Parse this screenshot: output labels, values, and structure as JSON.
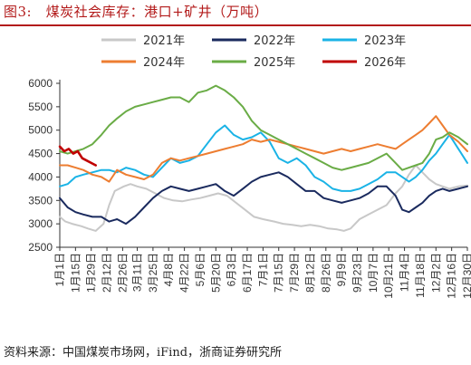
{
  "title": "图3:　煤炭社会库存：港口+矿井（万吨）",
  "source": "资料来源：中国煤炭市场网，iFind，浙商证券研究所",
  "chart_data": {
    "type": "line",
    "title": "图3:　煤炭社会库存：港口+矿井（万吨）",
    "xlabel": "",
    "ylabel": "",
    "ylim": [
      2500,
      6000
    ],
    "yticks": [
      2500,
      3000,
      3500,
      4000,
      4500,
      5000,
      5500,
      6000
    ],
    "xlim": [
      1,
      364
    ],
    "xticks": [
      {
        "label": "1月1日",
        "day": 1
      },
      {
        "label": "1月15日",
        "day": 15
      },
      {
        "label": "1月29日",
        "day": 29
      },
      {
        "label": "2月12日",
        "day": 43
      },
      {
        "label": "2月26日",
        "day": 57
      },
      {
        "label": "3月11日",
        "day": 70
      },
      {
        "label": "3月25日",
        "day": 84
      },
      {
        "label": "4月8日",
        "day": 98
      },
      {
        "label": "4月22日",
        "day": 112
      },
      {
        "label": "5月6日",
        "day": 126
      },
      {
        "label": "5月20日",
        "day": 140
      },
      {
        "label": "6月3日",
        "day": 154
      },
      {
        "label": "6月17日",
        "day": 168
      },
      {
        "label": "7月1日",
        "day": 182
      },
      {
        "label": "7月15日",
        "day": 196
      },
      {
        "label": "7月29日",
        "day": 210
      },
      {
        "label": "8月12日",
        "day": 224
      },
      {
        "label": "8月26日",
        "day": 238
      },
      {
        "label": "9月9日",
        "day": 252
      },
      {
        "label": "9月23日",
        "day": 266
      },
      {
        "label": "10月7日",
        "day": 280
      },
      {
        "label": "10月21日",
        "day": 294
      },
      {
        "label": "11月4日",
        "day": 308
      },
      {
        "label": "11月18日",
        "day": 322
      },
      {
        "label": "12月2日",
        "day": 336
      },
      {
        "label": "12月16日",
        "day": 350
      },
      {
        "label": "12月30日",
        "day": 364
      }
    ],
    "grid": false,
    "legend": "top",
    "series": [
      {
        "name": "2021年",
        "color": "#c8c8c8",
        "x": [
          1,
          6,
          12,
          20,
          26,
          33,
          40,
          45,
          50,
          58,
          64,
          70,
          78,
          86,
          94,
          102,
          110,
          118,
          126,
          134,
          142,
          150,
          158,
          166,
          174,
          182,
          192,
          200,
          208,
          216,
          224,
          232,
          240,
          248,
          254,
          260,
          268,
          276,
          284,
          292,
          300,
          306,
          312,
          318,
          324,
          330,
          336,
          342,
          348,
          356,
          364
        ],
        "y": [
          3150,
          3050,
          3000,
          2950,
          2900,
          2850,
          3000,
          3400,
          3700,
          3800,
          3850,
          3800,
          3750,
          3650,
          3550,
          3500,
          3480,
          3520,
          3550,
          3600,
          3650,
          3600,
          3450,
          3300,
          3150,
          3100,
          3050,
          3000,
          2980,
          2950,
          2980,
          2950,
          2900,
          2880,
          2850,
          2900,
          3100,
          3200,
          3300,
          3400,
          3650,
          3800,
          4050,
          4250,
          4100,
          3950,
          3850,
          3800,
          3750,
          3800,
          3820
        ]
      },
      {
        "name": "2022年",
        "color": "#1a2a5e",
        "x": [
          1,
          8,
          15,
          22,
          30,
          38,
          45,
          52,
          60,
          68,
          76,
          84,
          92,
          100,
          108,
          116,
          124,
          132,
          140,
          148,
          156,
          164,
          172,
          180,
          188,
          196,
          204,
          212,
          220,
          228,
          236,
          244,
          252,
          260,
          268,
          276,
          284,
          292,
          300,
          306,
          312,
          318,
          324,
          330,
          336,
          342,
          348,
          356,
          364
        ],
        "y": [
          3550,
          3350,
          3250,
          3200,
          3150,
          3150,
          3050,
          3100,
          3000,
          3150,
          3350,
          3550,
          3700,
          3800,
          3750,
          3700,
          3750,
          3800,
          3850,
          3700,
          3600,
          3750,
          3900,
          4000,
          4050,
          4100,
          4000,
          3850,
          3700,
          3700,
          3550,
          3500,
          3450,
          3500,
          3550,
          3650,
          3800,
          3800,
          3600,
          3300,
          3250,
          3350,
          3450,
          3600,
          3700,
          3750,
          3700,
          3750,
          3800
        ]
      },
      {
        "name": "2023年",
        "color": "#1ab3e6",
        "x": [
          1,
          8,
          15,
          22,
          30,
          38,
          45,
          52,
          60,
          68,
          76,
          84,
          92,
          100,
          108,
          116,
          124,
          132,
          140,
          148,
          156,
          164,
          172,
          180,
          188,
          196,
          204,
          212,
          220,
          228,
          236,
          244,
          252,
          260,
          268,
          276,
          284,
          292,
          300,
          306,
          312,
          318,
          324,
          330,
          336,
          342,
          348,
          356,
          364
        ],
        "y": [
          3800,
          3850,
          4000,
          4050,
          4100,
          4150,
          4150,
          4100,
          4200,
          4150,
          4050,
          4000,
          4200,
          4400,
          4300,
          4350,
          4450,
          4700,
          4950,
          5100,
          4900,
          4800,
          4850,
          4950,
          4750,
          4400,
          4300,
          4400,
          4250,
          4000,
          3900,
          3750,
          3700,
          3700,
          3750,
          3850,
          3950,
          4100,
          4100,
          4000,
          3900,
          4000,
          4150,
          4350,
          4500,
          4700,
          4900,
          4600,
          4300
        ]
      },
      {
        "name": "2024年",
        "color": "#ed7d31",
        "x": [
          1,
          8,
          15,
          22,
          30,
          38,
          45,
          52,
          60,
          68,
          76,
          84,
          92,
          100,
          108,
          116,
          124,
          132,
          140,
          148,
          156,
          164,
          172,
          180,
          188,
          196,
          204,
          212,
          220,
          228,
          236,
          244,
          252,
          260,
          268,
          276,
          284,
          292,
          300,
          306,
          312,
          318,
          324,
          330,
          336,
          342,
          348,
          356,
          364
        ],
        "y": [
          4250,
          4250,
          4200,
          4150,
          4050,
          4000,
          3900,
          4150,
          4050,
          4000,
          3950,
          4050,
          4300,
          4400,
          4350,
          4400,
          4450,
          4500,
          4550,
          4600,
          4650,
          4700,
          4800,
          4750,
          4800,
          4750,
          4700,
          4650,
          4600,
          4550,
          4500,
          4550,
          4600,
          4550,
          4600,
          4650,
          4700,
          4650,
          4600,
          4700,
          4800,
          4900,
          5000,
          5150,
          5300,
          5100,
          4900,
          4750,
          4550
        ]
      },
      {
        "name": "2025年",
        "color": "#6aac46",
        "x": [
          1,
          8,
          15,
          22,
          30,
          38,
          45,
          52,
          60,
          68,
          76,
          84,
          92,
          100,
          108,
          116,
          124,
          132,
          140,
          148,
          156,
          164,
          172,
          180,
          188,
          196,
          204,
          212,
          220,
          228,
          236,
          244,
          252,
          260,
          268,
          276,
          284,
          292,
          300,
          306,
          312,
          318,
          324,
          330,
          336,
          342,
          348,
          356,
          364
        ],
        "y": [
          4550,
          4500,
          4550,
          4600,
          4700,
          4900,
          5100,
          5250,
          5400,
          5500,
          5550,
          5600,
          5650,
          5700,
          5700,
          5600,
          5800,
          5850,
          5950,
          5850,
          5700,
          5500,
          5200,
          5000,
          4900,
          4800,
          4700,
          4600,
          4500,
          4400,
          4300,
          4200,
          4150,
          4200,
          4250,
          4300,
          4400,
          4500,
          4300,
          4150,
          4200,
          4250,
          4300,
          4500,
          4800,
          4850,
          4950,
          4850,
          4700
        ]
      },
      {
        "name": "2026年",
        "color": "#c00000",
        "x": [
          1,
          5,
          9,
          13,
          17,
          21,
          25,
          29,
          33
        ],
        "y": [
          4650,
          4550,
          4600,
          4500,
          4550,
          4400,
          4350,
          4300,
          4250
        ]
      }
    ]
  }
}
